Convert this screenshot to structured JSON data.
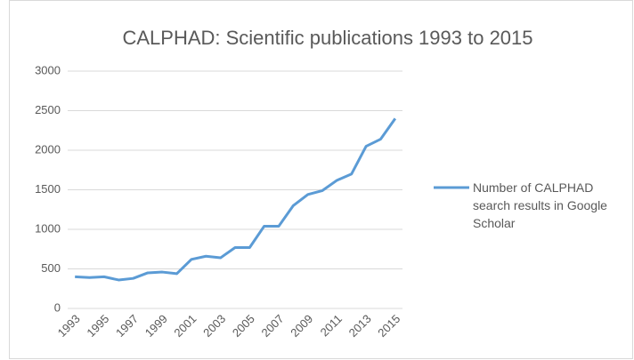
{
  "chart_data": {
    "type": "line",
    "title": "CALPHAD: Scientific publications 1993 to 2015",
    "categories": [
      "1993",
      null,
      "1995",
      null,
      "1997",
      null,
      "1999",
      null,
      "2001",
      null,
      "2003",
      null,
      "2005",
      null,
      "2007",
      null,
      "2009",
      null,
      "2011",
      null,
      "2013",
      null,
      "2015"
    ],
    "series": [
      {
        "name": "Number of CALPHAD search results in Google Scholar",
        "color": "#5b9bd5",
        "values": [
          400,
          390,
          400,
          360,
          380,
          450,
          460,
          440,
          620,
          660,
          640,
          770,
          770,
          1040,
          1040,
          1300,
          1440,
          1490,
          1620,
          1700,
          2050,
          2140,
          2400
        ]
      }
    ],
    "ylim": [
      0,
      3000
    ],
    "yticks": [
      0,
      500,
      1000,
      1500,
      2000,
      2500,
      3000
    ],
    "grid": true,
    "legend": "right"
  }
}
